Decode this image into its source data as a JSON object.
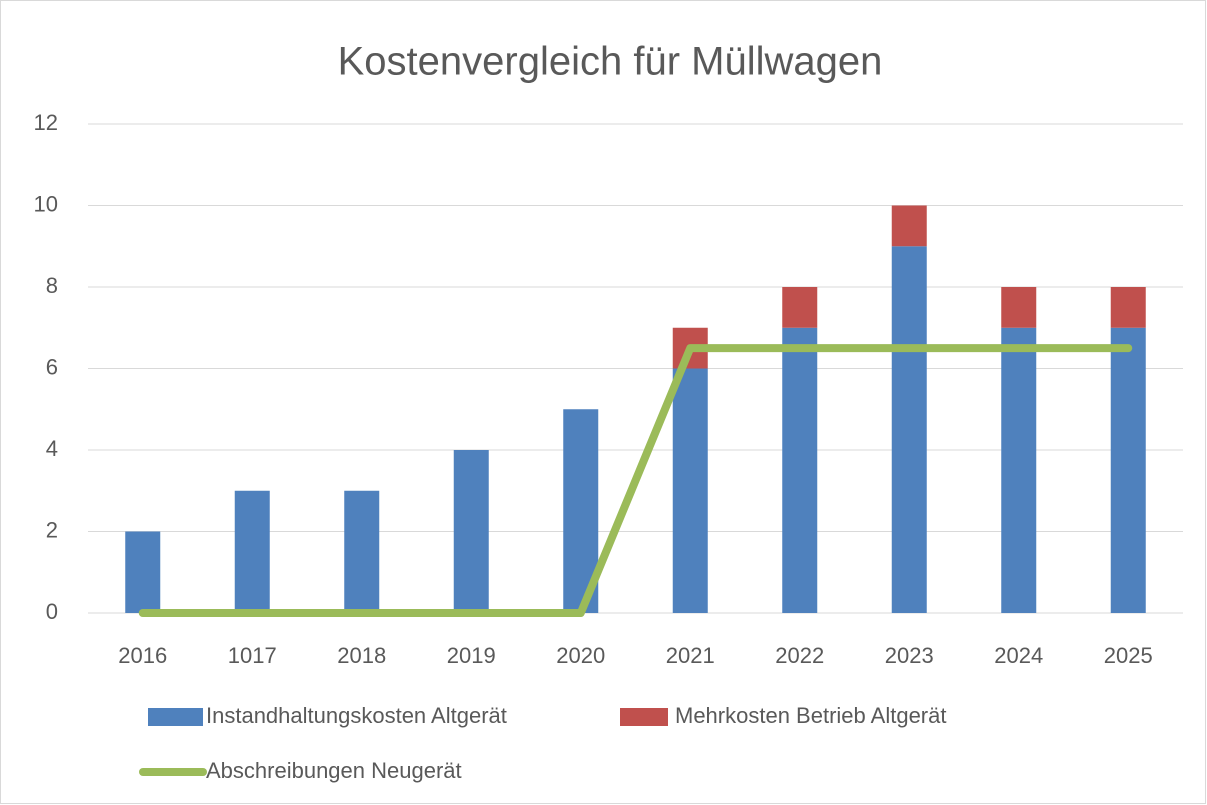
{
  "chart_data": {
    "type": "bar",
    "stacked": true,
    "title": "Kostenvergleich für Müllwagen",
    "categories": [
      "2016",
      "1017",
      "2018",
      "2019",
      "2020",
      "2021",
      "2022",
      "2023",
      "2024",
      "2025"
    ],
    "series": [
      {
        "name": "Instandhaltungskosten Altgerät",
        "type": "bar",
        "color": "#4f81bd",
        "values": [
          2,
          3,
          3,
          4,
          5,
          6,
          7,
          9,
          7,
          7
        ]
      },
      {
        "name": "Mehrkosten Betrieb Altgerät",
        "type": "bar",
        "color": "#c0504d",
        "values": [
          0,
          0,
          0,
          0,
          0,
          1,
          1,
          1,
          1,
          1
        ]
      },
      {
        "name": "Abschreibungen Neugerät",
        "type": "line",
        "color": "#9bbb59",
        "values": [
          0,
          0,
          0,
          0,
          0,
          6.5,
          6.5,
          6.5,
          6.5,
          6.5
        ]
      }
    ],
    "ylim": [
      0,
      12
    ],
    "yticks": [
      0,
      2,
      4,
      6,
      8,
      10,
      12
    ],
    "grid": true,
    "legend": "bottom"
  }
}
